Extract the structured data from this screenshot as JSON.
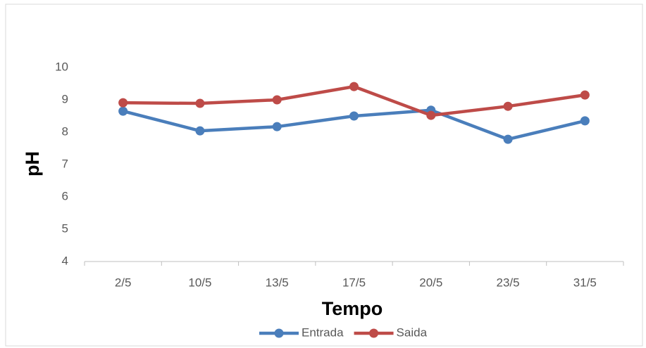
{
  "chart_data": {
    "type": "line",
    "categories": [
      "2/5",
      "10/5",
      "13/5",
      "17/5",
      "20/5",
      "23/5",
      "31/5"
    ],
    "series": [
      {
        "name": "Entrada",
        "color": "#4a7ebb",
        "values": [
          8.65,
          8.04,
          8.17,
          8.5,
          8.68,
          7.78,
          8.35
        ]
      },
      {
        "name": "Saida",
        "color": "#be4b48",
        "values": [
          8.91,
          8.89,
          9.0,
          9.41,
          8.52,
          8.8,
          9.15
        ]
      }
    ],
    "ylim": [
      4,
      10
    ],
    "yticks": [
      4,
      5,
      6,
      7,
      8,
      9,
      10
    ],
    "xlabel": "Tempo",
    "ylabel": "pH",
    "grid": false,
    "legend": "bottom"
  }
}
